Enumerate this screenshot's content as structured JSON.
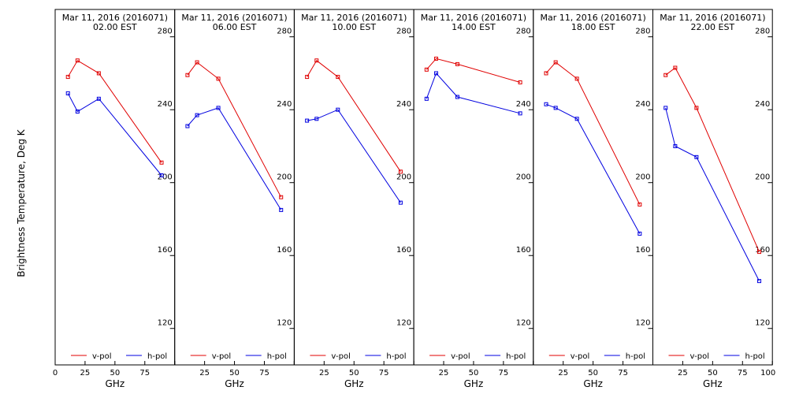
{
  "chart_data": {
    "type": "line",
    "ylabel": "Brightness Temperature, Deg K",
    "xlabel": "GHz",
    "xlim": [
      0,
      100
    ],
    "ylim": [
      100,
      295
    ],
    "x_ticks": [
      0,
      25,
      50,
      75,
      100
    ],
    "y_ticks": [
      120,
      160,
      200,
      240,
      280
    ],
    "legend": [
      "v-pol",
      "h-pol"
    ],
    "colors": {
      "v-pol": "#e00000",
      "h-pol": "#0000e0"
    },
    "panels": [
      {
        "title_line1": "Mar 11, 2016 (2016071)",
        "title_line2": "02.00 EST",
        "series": [
          {
            "name": "v-pol",
            "x": [
              10.7,
              18.7,
              36.5,
              89.0
            ],
            "y": [
              258,
              267,
              260,
              211
            ]
          },
          {
            "name": "h-pol",
            "x": [
              10.7,
              18.7,
              36.5,
              89.0
            ],
            "y": [
              249,
              239,
              246,
              204
            ]
          }
        ]
      },
      {
        "title_line1": "Mar 11, 2016 (2016071)",
        "title_line2": "06.00 EST",
        "series": [
          {
            "name": "v-pol",
            "x": [
              10.7,
              18.7,
              36.5,
              89.0
            ],
            "y": [
              259,
              266,
              257,
              192
            ]
          },
          {
            "name": "h-pol",
            "x": [
              10.7,
              18.7,
              36.5,
              89.0
            ],
            "y": [
              231,
              237,
              241,
              185
            ]
          }
        ]
      },
      {
        "title_line1": "Mar 11, 2016 (2016071)",
        "title_line2": "10.00 EST",
        "series": [
          {
            "name": "v-pol",
            "x": [
              10.7,
              18.7,
              36.5,
              89.0
            ],
            "y": [
              258,
              267,
              258,
              206
            ]
          },
          {
            "name": "h-pol",
            "x": [
              10.7,
              18.7,
              36.5,
              89.0
            ],
            "y": [
              234,
              235,
              240,
              189
            ]
          }
        ]
      },
      {
        "title_line1": "Mar 11, 2016 (2016071)",
        "title_line2": "14.00 EST",
        "series": [
          {
            "name": "v-pol",
            "x": [
              10.7,
              18.7,
              36.5,
              89.0
            ],
            "y": [
              262,
              268,
              265,
              255
            ]
          },
          {
            "name": "h-pol",
            "x": [
              10.7,
              18.7,
              36.5,
              89.0
            ],
            "y": [
              246,
              260,
              247,
              238
            ]
          }
        ]
      },
      {
        "title_line1": "Mar 11, 2016 (2016071)",
        "title_line2": "18.00 EST",
        "series": [
          {
            "name": "v-pol",
            "x": [
              10.7,
              18.7,
              36.5,
              89.0
            ],
            "y": [
              260,
              266,
              257,
              188
            ]
          },
          {
            "name": "h-pol",
            "x": [
              10.7,
              18.7,
              36.5,
              89.0
            ],
            "y": [
              243,
              241,
              235,
              172
            ]
          }
        ]
      },
      {
        "title_line1": "Mar 11, 2016 (2016071)",
        "title_line2": "22.00 EST",
        "series": [
          {
            "name": "v-pol",
            "x": [
              10.7,
              18.7,
              36.5,
              89.0
            ],
            "y": [
              259,
              263,
              241,
              162
            ]
          },
          {
            "name": "h-pol",
            "x": [
              10.7,
              18.7,
              36.5,
              89.0
            ],
            "y": [
              241,
              220,
              214,
              146
            ]
          }
        ]
      }
    ]
  }
}
